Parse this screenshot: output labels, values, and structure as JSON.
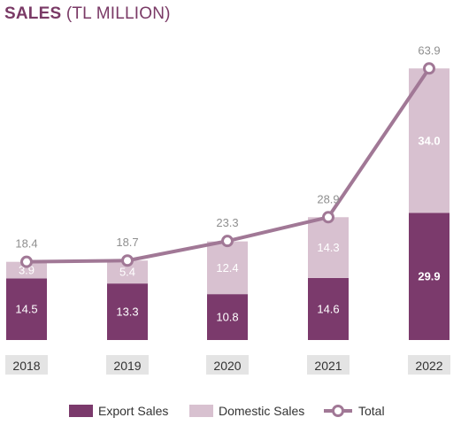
{
  "chart_data": {
    "type": "bar",
    "title": "SALES",
    "subtitle": "(TL MILLION)",
    "categories": [
      "2018",
      "2019",
      "2020",
      "2021",
      "2022"
    ],
    "stacked": true,
    "series": [
      {
        "name": "Export Sales",
        "kind": "bar",
        "color": "#7b3a6c",
        "values": [
          14.5,
          13.3,
          10.8,
          14.6,
          29.9
        ]
      },
      {
        "name": "Domestic Sales",
        "kind": "bar",
        "color": "#d8c1d0",
        "values": [
          3.9,
          5.4,
          12.4,
          14.3,
          34.0
        ]
      },
      {
        "name": "Total",
        "kind": "line",
        "color": "#a17896",
        "values": [
          18.4,
          18.7,
          23.3,
          28.9,
          63.9
        ]
      }
    ],
    "ylim": [
      0,
      70
    ],
    "grid": false,
    "legend": "bottom-center"
  }
}
